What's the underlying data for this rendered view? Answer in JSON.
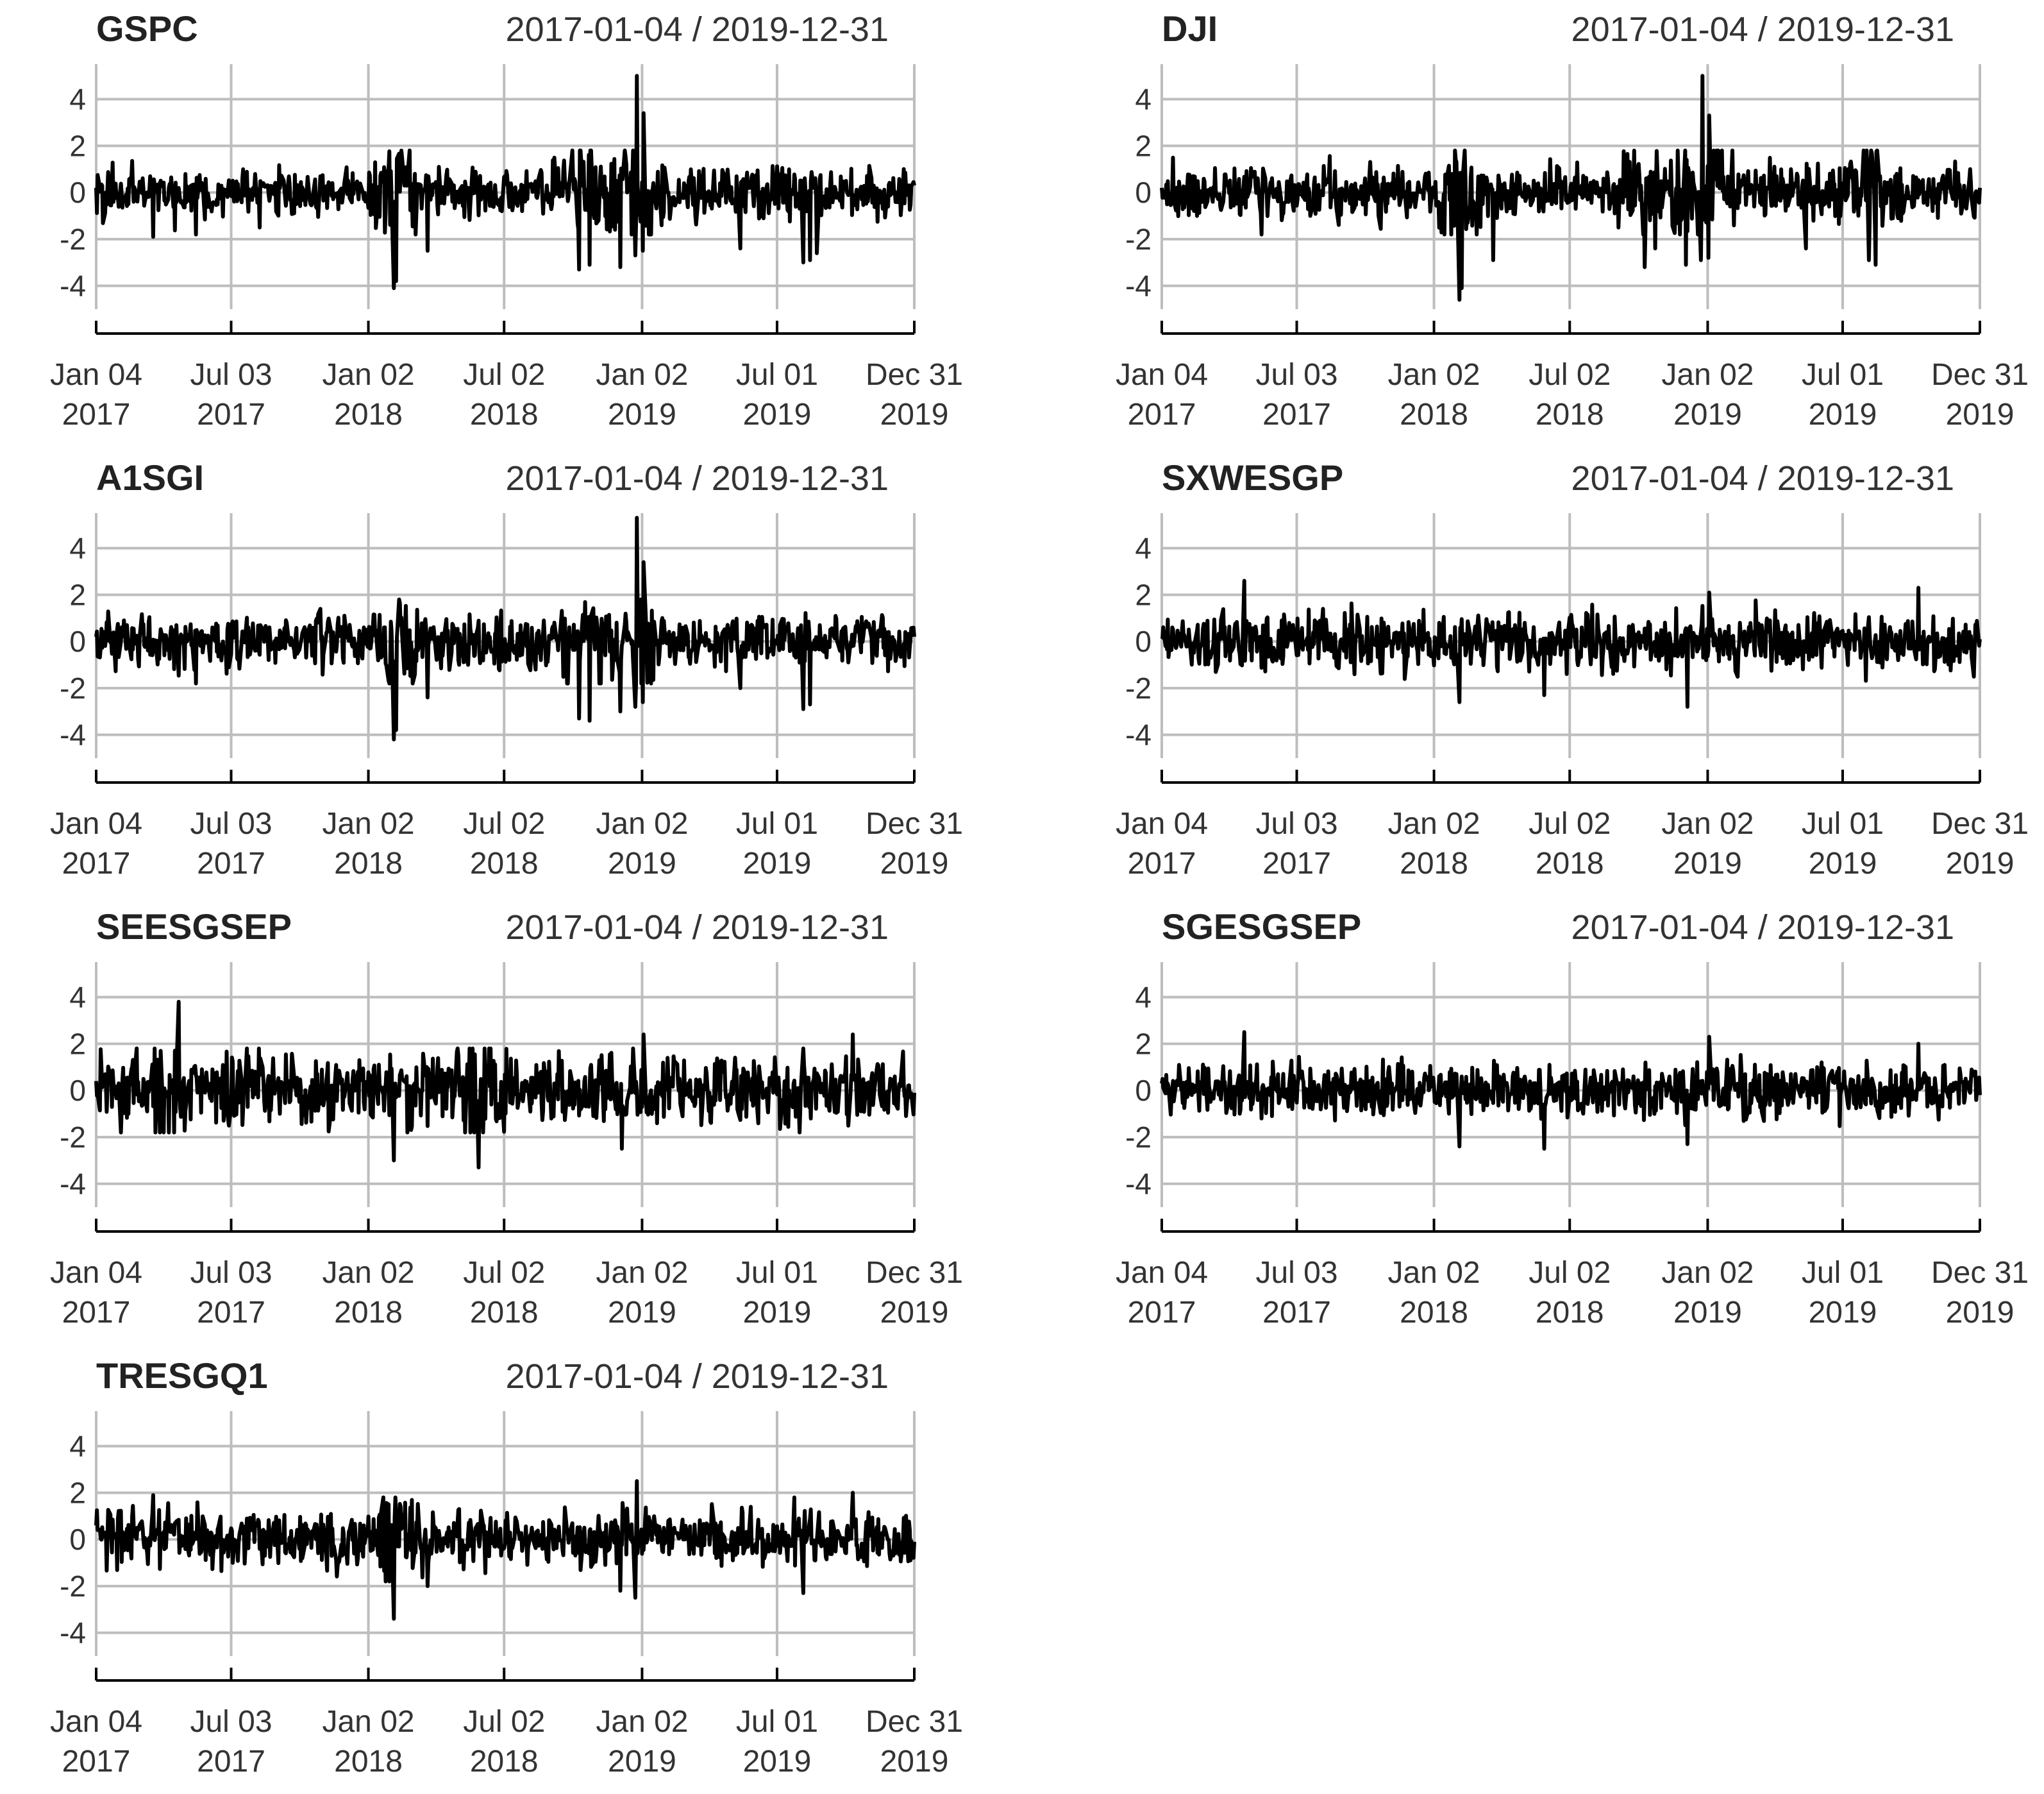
{
  "chart_data": [
    {
      "type": "line",
      "title": "GSPC",
      "subtitle": "2017-01-04 / 2019-12-31",
      "x_range": [
        "2017-01-04",
        "2019-12-31"
      ],
      "ylim": [
        -5,
        5.5
      ],
      "y_ticks": [
        4,
        2,
        0,
        -2,
        -4
      ],
      "x_ticks": [
        {
          "date": "2017-01-04",
          "label1": "Jan 04",
          "label2": "2017"
        },
        {
          "date": "2017-07-03",
          "label1": "Jul 03",
          "label2": "2017"
        },
        {
          "date": "2018-01-02",
          "label1": "Jan 02",
          "label2": "2018"
        },
        {
          "date": "2018-07-02",
          "label1": "Jul 02",
          "label2": "2018"
        },
        {
          "date": "2019-01-02",
          "label1": "Jan 02",
          "label2": "2019"
        },
        {
          "date": "2019-07-01",
          "label1": "Jul 01",
          "label2": "2019"
        },
        {
          "date": "2019-12-31",
          "label1": "Dec 31",
          "label2": "2019"
        }
      ],
      "grid": true,
      "series": [
        {
          "x": [
            "2017-01-04",
            "2017-03-21",
            "2017-05-17",
            "2017-08-10",
            "2017-10-02",
            "2018-02-05",
            "2018-02-08",
            "2018-03-22",
            "2018-04-06",
            "2018-10-10",
            "2018-10-24",
            "2018-12-04",
            "2018-12-24",
            "2018-12-26",
            "2019-01-03",
            "2019-01-04",
            "2019-05-13",
            "2019-08-05",
            "2019-08-14",
            "2019-08-23",
            "2019-12-31"
          ],
          "y": [
            0.2,
            -1.9,
            -1.8,
            -1.5,
            0.3,
            -4.1,
            -3.8,
            -2.5,
            1.1,
            -3.3,
            -3.1,
            -3.2,
            -2.7,
            5.0,
            -2.5,
            3.4,
            -2.4,
            -3.0,
            -2.9,
            -2.6,
            0.3
          ]
        }
      ]
    },
    {
      "type": "line",
      "title": "DJI",
      "subtitle": "2017-01-04 / 2019-12-31",
      "x_range": [
        "2017-01-04",
        "2019-12-31"
      ],
      "ylim": [
        -5,
        5.5
      ],
      "y_ticks": [
        4,
        2,
        0,
        -2,
        -4
      ],
      "x_ticks": [
        {
          "date": "2017-01-04",
          "label1": "Jan 04",
          "label2": "2017"
        },
        {
          "date": "2017-07-03",
          "label1": "Jul 03",
          "label2": "2017"
        },
        {
          "date": "2018-01-02",
          "label1": "Jan 02",
          "label2": "2018"
        },
        {
          "date": "2018-07-02",
          "label1": "Jul 02",
          "label2": "2018"
        },
        {
          "date": "2019-01-02",
          "label1": "Jan 02",
          "label2": "2019"
        },
        {
          "date": "2019-07-01",
          "label1": "Jul 01",
          "label2": "2019"
        },
        {
          "date": "2019-12-31",
          "label1": "Dec 31",
          "label2": "2019"
        }
      ],
      "grid": true,
      "series": [
        {
          "x": [
            "2017-01-04",
            "2017-05-17",
            "2018-02-05",
            "2018-02-08",
            "2018-03-22",
            "2018-10-10",
            "2018-10-24",
            "2018-12-04",
            "2018-12-24",
            "2018-12-26",
            "2019-01-03",
            "2019-01-04",
            "2019-05-13",
            "2019-08-05",
            "2019-08-14",
            "2019-12-31"
          ],
          "y": [
            0.2,
            -1.8,
            -4.6,
            -4.1,
            -2.9,
            -3.2,
            -2.4,
            -3.1,
            -2.9,
            5.0,
            -2.8,
            3.3,
            -2.4,
            -2.9,
            -3.1,
            0.2
          ]
        }
      ]
    },
    {
      "type": "line",
      "title": "A1SGI",
      "subtitle": "2017-01-04 / 2019-12-31",
      "x_range": [
        "2017-01-04",
        "2019-12-31"
      ],
      "ylim": [
        -5,
        5.5
      ],
      "y_ticks": [
        4,
        2,
        0,
        -2,
        -4
      ],
      "x_ticks": [
        {
          "date": "2017-01-04",
          "label1": "Jan 04",
          "label2": "2017"
        },
        {
          "date": "2017-07-03",
          "label1": "Jul 03",
          "label2": "2017"
        },
        {
          "date": "2018-01-02",
          "label1": "Jan 02",
          "label2": "2018"
        },
        {
          "date": "2018-07-02",
          "label1": "Jul 02",
          "label2": "2018"
        },
        {
          "date": "2019-01-02",
          "label1": "Jan 02",
          "label2": "2019"
        },
        {
          "date": "2019-07-01",
          "label1": "Jul 01",
          "label2": "2019"
        },
        {
          "date": "2019-12-31",
          "label1": "Dec 31",
          "label2": "2019"
        }
      ],
      "grid": true,
      "series": [
        {
          "x": [
            "2017-01-04",
            "2017-05-17",
            "2018-02-05",
            "2018-02-08",
            "2018-03-22",
            "2018-10-10",
            "2018-10-24",
            "2018-12-04",
            "2018-12-24",
            "2018-12-26",
            "2019-01-03",
            "2019-01-04",
            "2019-05-13",
            "2019-08-05",
            "2019-08-14",
            "2019-12-31"
          ],
          "y": [
            0.2,
            -1.8,
            -4.2,
            -3.8,
            -2.4,
            -3.3,
            -3.4,
            -3.0,
            -2.8,
            5.3,
            -2.6,
            3.4,
            -2.0,
            -2.9,
            -2.7,
            0.2
          ]
        }
      ]
    },
    {
      "type": "line",
      "title": "SXWESGP",
      "subtitle": "2017-01-04 / 2019-12-31",
      "x_range": [
        "2017-01-04",
        "2019-12-31"
      ],
      "ylim": [
        -5,
        5.5
      ],
      "y_ticks": [
        4,
        2,
        0,
        -2,
        -4
      ],
      "x_ticks": [
        {
          "date": "2017-01-04",
          "label1": "Jan 04",
          "label2": "2017"
        },
        {
          "date": "2017-07-03",
          "label1": "Jul 03",
          "label2": "2017"
        },
        {
          "date": "2018-01-02",
          "label1": "Jan 02",
          "label2": "2018"
        },
        {
          "date": "2018-07-02",
          "label1": "Jul 02",
          "label2": "2018"
        },
        {
          "date": "2019-01-02",
          "label1": "Jan 02",
          "label2": "2019"
        },
        {
          "date": "2019-07-01",
          "label1": "Jul 01",
          "label2": "2019"
        },
        {
          "date": "2019-12-31",
          "label1": "Dec 31",
          "label2": "2019"
        }
      ],
      "grid": true,
      "series": [
        {
          "x": [
            "2017-01-04",
            "2017-04-24",
            "2018-02-05",
            "2018-05-29",
            "2018-12-06",
            "2019-01-04",
            "2019-10-10",
            "2019-12-31"
          ],
          "y": [
            0.1,
            2.6,
            -2.6,
            -2.3,
            -2.8,
            2.1,
            2.3,
            0.1
          ]
        }
      ]
    },
    {
      "type": "line",
      "title": "SEESGSEP",
      "subtitle": "2017-01-04 / 2019-12-31",
      "x_range": [
        "2017-01-04",
        "2019-12-31"
      ],
      "ylim": [
        -5,
        5.5
      ],
      "y_ticks": [
        4,
        2,
        0,
        -2,
        -4
      ],
      "x_ticks": [
        {
          "date": "2017-01-04",
          "label1": "Jan 04",
          "label2": "2017"
        },
        {
          "date": "2017-07-03",
          "label1": "Jul 03",
          "label2": "2017"
        },
        {
          "date": "2018-01-02",
          "label1": "Jan 02",
          "label2": "2018"
        },
        {
          "date": "2018-07-02",
          "label1": "Jul 02",
          "label2": "2018"
        },
        {
          "date": "2019-01-02",
          "label1": "Jan 02",
          "label2": "2019"
        },
        {
          "date": "2019-07-01",
          "label1": "Jul 01",
          "label2": "2019"
        },
        {
          "date": "2019-12-31",
          "label1": "Dec 31",
          "label2": "2019"
        }
      ],
      "grid": true,
      "series": [
        {
          "x": [
            "2017-01-04",
            "2017-04-24",
            "2018-02-05",
            "2018-05-29",
            "2018-12-06",
            "2019-01-04",
            "2019-10-10",
            "2019-12-31"
          ],
          "y": [
            0.4,
            3.8,
            -3.0,
            -3.3,
            -2.5,
            2.4,
            2.4,
            -0.1
          ]
        }
      ]
    },
    {
      "type": "line",
      "title": "SGESGSEP",
      "subtitle": "2017-01-04 / 2019-12-31",
      "x_range": [
        "2017-01-04",
        "2019-12-31"
      ],
      "ylim": [
        -5,
        5.5
      ],
      "y_ticks": [
        4,
        2,
        0,
        -2,
        -4
      ],
      "x_ticks": [
        {
          "date": "2017-01-04",
          "label1": "Jan 04",
          "label2": "2017"
        },
        {
          "date": "2017-07-03",
          "label1": "Jul 03",
          "label2": "2017"
        },
        {
          "date": "2018-01-02",
          "label1": "Jan 02",
          "label2": "2018"
        },
        {
          "date": "2018-07-02",
          "label1": "Jul 02",
          "label2": "2018"
        },
        {
          "date": "2019-01-02",
          "label1": "Jan 02",
          "label2": "2019"
        },
        {
          "date": "2019-07-01",
          "label1": "Jul 01",
          "label2": "2019"
        },
        {
          "date": "2019-12-31",
          "label1": "Dec 31",
          "label2": "2019"
        }
      ],
      "grid": true,
      "series": [
        {
          "x": [
            "2017-01-04",
            "2017-04-24",
            "2018-02-05",
            "2018-05-29",
            "2018-12-06",
            "2019-01-04",
            "2019-10-10",
            "2019-12-31"
          ],
          "y": [
            0.3,
            2.5,
            -2.4,
            -2.5,
            -2.3,
            2.3,
            2.0,
            -0.2
          ]
        }
      ]
    },
    {
      "type": "line",
      "title": "TRESGQ1",
      "subtitle": "2017-01-04 / 2019-12-31",
      "x_range": [
        "2017-01-04",
        "2019-12-31"
      ],
      "ylim": [
        -5,
        5.5
      ],
      "y_ticks": [
        4,
        2,
        0,
        -2,
        -4
      ],
      "x_ticks": [
        {
          "date": "2017-01-04",
          "label1": "Jan 04",
          "label2": "2017"
        },
        {
          "date": "2017-07-03",
          "label1": "Jul 03",
          "label2": "2017"
        },
        {
          "date": "2018-01-02",
          "label1": "Jan 02",
          "label2": "2018"
        },
        {
          "date": "2018-07-02",
          "label1": "Jul 02",
          "label2": "2018"
        },
        {
          "date": "2019-01-02",
          "label1": "Jan 02",
          "label2": "2019"
        },
        {
          "date": "2019-07-01",
          "label1": "Jul 01",
          "label2": "2019"
        },
        {
          "date": "2019-12-31",
          "label1": "Dec 31",
          "label2": "2019"
        }
      ],
      "grid": true,
      "series": [
        {
          "x": [
            "2017-01-04",
            "2017-03-21",
            "2018-02-05",
            "2018-03-22",
            "2018-12-04",
            "2018-12-24",
            "2018-12-26",
            "2019-08-05",
            "2019-10-10",
            "2019-12-31"
          ],
          "y": [
            0.6,
            1.9,
            -3.4,
            -2.0,
            -2.2,
            -2.5,
            2.5,
            -2.3,
            2.0,
            -0.1
          ]
        }
      ]
    }
  ]
}
